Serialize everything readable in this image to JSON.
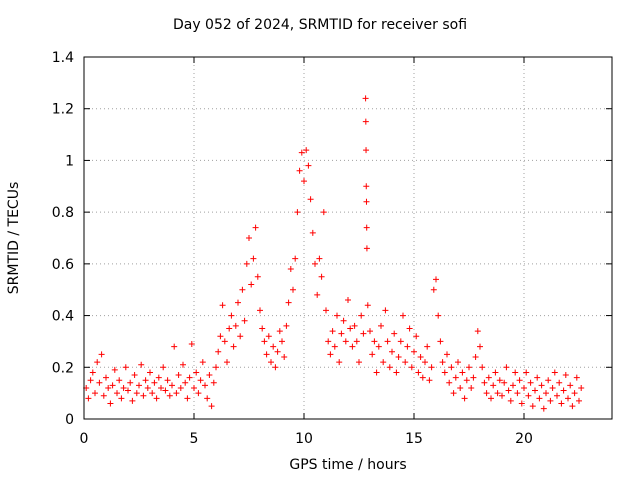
{
  "chart_data": {
    "type": "scatter",
    "title": "Day 052 of 2024, SRMTID for receiver sofi",
    "xlabel": "GPS time / hours",
    "ylabel": "SRMTID / TECUs",
    "xlim": [
      0,
      24
    ],
    "ylim": [
      0,
      1.4
    ],
    "xticks": [
      0,
      5,
      10,
      15,
      20
    ],
    "xtick_labels": [
      "0",
      "5",
      "10",
      "15",
      "20"
    ],
    "yticks": [
      0,
      0.2,
      0.4,
      0.6,
      0.8,
      1.0,
      1.2,
      1.4
    ],
    "ytick_labels": [
      "0",
      "0.2",
      "0.4",
      "0.6",
      "0.8",
      "1",
      "1.2",
      "1.4"
    ],
    "grid": true,
    "marker": "+",
    "color": "#ff0000",
    "series": [
      {
        "name": "SRMTID",
        "points": [
          [
            0.1,
            0.12
          ],
          [
            0.2,
            0.08
          ],
          [
            0.3,
            0.15
          ],
          [
            0.4,
            0.18
          ],
          [
            0.5,
            0.1
          ],
          [
            0.6,
            0.22
          ],
          [
            0.7,
            0.14
          ],
          [
            0.8,
            0.25
          ],
          [
            0.9,
            0.09
          ],
          [
            1.0,
            0.16
          ],
          [
            1.1,
            0.12
          ],
          [
            1.2,
            0.06
          ],
          [
            1.3,
            0.13
          ],
          [
            1.4,
            0.19
          ],
          [
            1.5,
            0.1
          ],
          [
            1.6,
            0.15
          ],
          [
            1.7,
            0.08
          ],
          [
            1.8,
            0.12
          ],
          [
            1.9,
            0.2
          ],
          [
            2.0,
            0.11
          ],
          [
            2.1,
            0.14
          ],
          [
            2.2,
            0.07
          ],
          [
            2.3,
            0.17
          ],
          [
            2.4,
            0.1
          ],
          [
            2.5,
            0.13
          ],
          [
            2.6,
            0.21
          ],
          [
            2.7,
            0.09
          ],
          [
            2.8,
            0.15
          ],
          [
            2.9,
            0.12
          ],
          [
            3.0,
            0.18
          ],
          [
            3.1,
            0.1
          ],
          [
            3.2,
            0.14
          ],
          [
            3.3,
            0.08
          ],
          [
            3.4,
            0.16
          ],
          [
            3.5,
            0.12
          ],
          [
            3.6,
            0.2
          ],
          [
            3.7,
            0.11
          ],
          [
            3.8,
            0.15
          ],
          [
            3.9,
            0.09
          ],
          [
            4.0,
            0.13
          ],
          [
            4.1,
            0.28
          ],
          [
            4.2,
            0.1
          ],
          [
            4.3,
            0.17
          ],
          [
            4.4,
            0.12
          ],
          [
            4.5,
            0.21
          ],
          [
            4.6,
            0.14
          ],
          [
            4.7,
            0.08
          ],
          [
            4.8,
            0.16
          ],
          [
            4.9,
            0.29
          ],
          [
            5.0,
            0.12
          ],
          [
            5.1,
            0.18
          ],
          [
            5.2,
            0.1
          ],
          [
            5.3,
            0.15
          ],
          [
            5.4,
            0.22
          ],
          [
            5.5,
            0.13
          ],
          [
            5.6,
            0.08
          ],
          [
            5.7,
            0.17
          ],
          [
            5.8,
            0.05
          ],
          [
            5.9,
            0.14
          ],
          [
            6.0,
            0.2
          ],
          [
            6.1,
            0.26
          ],
          [
            6.2,
            0.32
          ],
          [
            6.3,
            0.44
          ],
          [
            6.4,
            0.3
          ],
          [
            6.5,
            0.22
          ],
          [
            6.6,
            0.35
          ],
          [
            6.7,
            0.4
          ],
          [
            6.8,
            0.28
          ],
          [
            6.9,
            0.36
          ],
          [
            7.0,
            0.45
          ],
          [
            7.1,
            0.32
          ],
          [
            7.2,
            0.5
          ],
          [
            7.3,
            0.38
          ],
          [
            7.4,
            0.6
          ],
          [
            7.5,
            0.7
          ],
          [
            7.6,
            0.52
          ],
          [
            7.7,
            0.62
          ],
          [
            7.8,
            0.74
          ],
          [
            7.9,
            0.55
          ],
          [
            8.0,
            0.42
          ],
          [
            8.1,
            0.35
          ],
          [
            8.2,
            0.3
          ],
          [
            8.3,
            0.25
          ],
          [
            8.4,
            0.32
          ],
          [
            8.5,
            0.22
          ],
          [
            8.6,
            0.28
          ],
          [
            8.7,
            0.2
          ],
          [
            8.8,
            0.26
          ],
          [
            8.9,
            0.34
          ],
          [
            9.0,
            0.3
          ],
          [
            9.1,
            0.24
          ],
          [
            9.2,
            0.36
          ],
          [
            9.3,
            0.45
          ],
          [
            9.4,
            0.58
          ],
          [
            9.5,
            0.5
          ],
          [
            9.6,
            0.62
          ],
          [
            9.7,
            0.8
          ],
          [
            9.8,
            0.96
          ],
          [
            9.9,
            1.03
          ],
          [
            10.0,
            0.92
          ],
          [
            10.1,
            1.04
          ],
          [
            10.2,
            0.98
          ],
          [
            10.3,
            0.85
          ],
          [
            10.4,
            0.72
          ],
          [
            10.5,
            0.6
          ],
          [
            10.6,
            0.48
          ],
          [
            10.7,
            0.62
          ],
          [
            10.8,
            0.55
          ],
          [
            10.9,
            0.8
          ],
          [
            11.0,
            0.42
          ],
          [
            11.1,
            0.3
          ],
          [
            11.2,
            0.25
          ],
          [
            11.3,
            0.34
          ],
          [
            11.4,
            0.28
          ],
          [
            11.5,
            0.4
          ],
          [
            11.6,
            0.22
          ],
          [
            11.7,
            0.33
          ],
          [
            11.8,
            0.38
          ],
          [
            11.9,
            0.3
          ],
          [
            12.0,
            0.46
          ],
          [
            12.1,
            0.35
          ],
          [
            12.2,
            0.28
          ],
          [
            12.3,
            0.36
          ],
          [
            12.4,
            0.3
          ],
          [
            12.5,
            0.22
          ],
          [
            12.6,
            0.4
          ],
          [
            12.7,
            0.33
          ],
          [
            12.8,
            1.24
          ],
          [
            12.81,
            1.15
          ],
          [
            12.82,
            1.04
          ],
          [
            12.83,
            0.9
          ],
          [
            12.84,
            0.84
          ],
          [
            12.85,
            0.74
          ],
          [
            12.86,
            0.66
          ],
          [
            12.9,
            0.44
          ],
          [
            13.0,
            0.34
          ],
          [
            13.1,
            0.25
          ],
          [
            13.2,
            0.3
          ],
          [
            13.3,
            0.18
          ],
          [
            13.4,
            0.28
          ],
          [
            13.5,
            0.36
          ],
          [
            13.6,
            0.22
          ],
          [
            13.7,
            0.42
          ],
          [
            13.8,
            0.3
          ],
          [
            13.9,
            0.2
          ],
          [
            14.0,
            0.26
          ],
          [
            14.1,
            0.33
          ],
          [
            14.2,
            0.18
          ],
          [
            14.3,
            0.24
          ],
          [
            14.4,
            0.3
          ],
          [
            14.5,
            0.4
          ],
          [
            14.6,
            0.22
          ],
          [
            14.7,
            0.28
          ],
          [
            14.8,
            0.35
          ],
          [
            14.9,
            0.2
          ],
          [
            15.0,
            0.26
          ],
          [
            15.1,
            0.32
          ],
          [
            15.2,
            0.18
          ],
          [
            15.3,
            0.24
          ],
          [
            15.4,
            0.16
          ],
          [
            15.5,
            0.22
          ],
          [
            15.6,
            0.28
          ],
          [
            15.7,
            0.15
          ],
          [
            15.8,
            0.2
          ],
          [
            15.9,
            0.5
          ],
          [
            16.0,
            0.54
          ],
          [
            16.1,
            0.4
          ],
          [
            16.2,
            0.3
          ],
          [
            16.3,
            0.22
          ],
          [
            16.4,
            0.18
          ],
          [
            16.5,
            0.25
          ],
          [
            16.6,
            0.14
          ],
          [
            16.7,
            0.2
          ],
          [
            16.8,
            0.1
          ],
          [
            16.9,
            0.16
          ],
          [
            17.0,
            0.22
          ],
          [
            17.1,
            0.12
          ],
          [
            17.2,
            0.18
          ],
          [
            17.3,
            0.08
          ],
          [
            17.4,
            0.15
          ],
          [
            17.5,
            0.2
          ],
          [
            17.6,
            0.12
          ],
          [
            17.7,
            0.16
          ],
          [
            17.8,
            0.24
          ],
          [
            17.9,
            0.34
          ],
          [
            18.0,
            0.28
          ],
          [
            18.1,
            0.2
          ],
          [
            18.2,
            0.14
          ],
          [
            18.3,
            0.1
          ],
          [
            18.4,
            0.16
          ],
          [
            18.5,
            0.08
          ],
          [
            18.6,
            0.13
          ],
          [
            18.7,
            0.18
          ],
          [
            18.8,
            0.1
          ],
          [
            18.9,
            0.15
          ],
          [
            19.0,
            0.09
          ],
          [
            19.1,
            0.14
          ],
          [
            19.2,
            0.2
          ],
          [
            19.3,
            0.11
          ],
          [
            19.4,
            0.07
          ],
          [
            19.5,
            0.13
          ],
          [
            19.6,
            0.18
          ],
          [
            19.7,
            0.1
          ],
          [
            19.8,
            0.15
          ],
          [
            19.9,
            0.06
          ],
          [
            20.0,
            0.12
          ],
          [
            20.1,
            0.18
          ],
          [
            20.2,
            0.09
          ],
          [
            20.3,
            0.14
          ],
          [
            20.4,
            0.05
          ],
          [
            20.5,
            0.11
          ],
          [
            20.6,
            0.16
          ],
          [
            20.7,
            0.08
          ],
          [
            20.8,
            0.13
          ],
          [
            20.9,
            0.04
          ],
          [
            21.0,
            0.1
          ],
          [
            21.1,
            0.15
          ],
          [
            21.2,
            0.07
          ],
          [
            21.3,
            0.12
          ],
          [
            21.4,
            0.18
          ],
          [
            21.5,
            0.09
          ],
          [
            21.6,
            0.14
          ],
          [
            21.7,
            0.06
          ],
          [
            21.8,
            0.11
          ],
          [
            21.9,
            0.17
          ],
          [
            22.0,
            0.08
          ],
          [
            22.1,
            0.13
          ],
          [
            22.2,
            0.05
          ],
          [
            22.3,
            0.1
          ],
          [
            22.4,
            0.16
          ],
          [
            22.5,
            0.07
          ],
          [
            22.6,
            0.12
          ]
        ]
      }
    ]
  }
}
